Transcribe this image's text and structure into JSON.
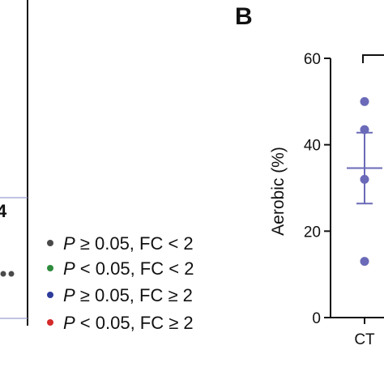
{
  "panel_a": {
    "fragment_number": "4",
    "legend": [
      {
        "p_sym": "P",
        "rest": " ≥ 0.05, FC < 2",
        "color": "#4a4a4a"
      },
      {
        "p_sym": "P",
        "rest": " < 0.05, FC < 2",
        "color": "#2e8b3c"
      },
      {
        "p_sym": "P",
        "rest": " ≥ 0.05, FC ≥ 2",
        "color": "#2d3c9b"
      },
      {
        "p_sym": "P",
        "rest": " < 0.05, FC ≥ 2",
        "color": "#d42a2a"
      }
    ],
    "line_color": "#9a9fd0",
    "point_color": "#4a4a4a"
  },
  "chart_data": {
    "type": "scatter",
    "panel_letter": "B",
    "ylabel": "Aerobic (%)",
    "xlabel": "",
    "categories": [
      "CT"
    ],
    "ylim": [
      0,
      60
    ],
    "yticks": [
      "0",
      "20",
      "40",
      "60"
    ],
    "series": [
      {
        "category": "CT",
        "points": [
          50,
          43.5,
          32,
          13
        ],
        "mean": 34.6,
        "sem_upper": 42.8,
        "sem_lower": 26.4,
        "color": "#6a6ab8"
      }
    ]
  }
}
